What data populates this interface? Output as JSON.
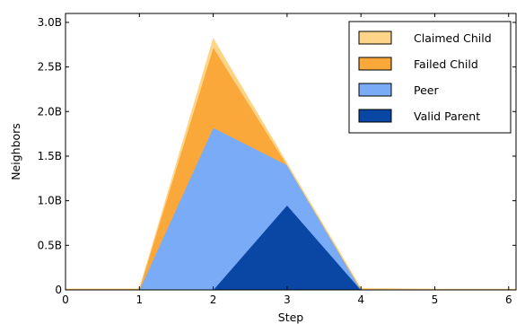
{
  "chart_data": {
    "type": "area",
    "stacked": true,
    "xlabel": "Step",
    "ylabel": "Neighbors",
    "xlim": [
      0,
      6.1
    ],
    "ylim": [
      0,
      3.1
    ],
    "x": [
      0,
      1,
      2,
      3,
      4,
      5,
      6.1
    ],
    "x_ticks": [
      0,
      1,
      2,
      3,
      4,
      5,
      6
    ],
    "x_tick_labels": [
      "0",
      "1",
      "2",
      "3",
      "4",
      "5",
      "6"
    ],
    "y_ticks": [
      0,
      0.5,
      1.0,
      1.5,
      2.0,
      2.5,
      3.0
    ],
    "y_tick_labels": [
      "0",
      "0.5B",
      "1.0B",
      "1.5B",
      "2.0B",
      "2.5B",
      "3.0B"
    ],
    "y_unit": "billions",
    "series": [
      {
        "name": "Valid Parent",
        "color": "#0a46a4",
        "values": [
          0,
          0,
          0,
          0.95,
          0,
          0,
          0
        ]
      },
      {
        "name": "Peer",
        "color": "#7aabf7",
        "values": [
          0,
          0,
          1.82,
          0.45,
          0,
          0,
          0
        ]
      },
      {
        "name": "Failed Child",
        "color": "#fba83a",
        "values": [
          0.01,
          0.01,
          0.9,
          0,
          0.01,
          0,
          0
        ]
      },
      {
        "name": "Claimed Child",
        "color": "#fed588",
        "values": [
          0,
          0,
          0.1,
          0.02,
          0.01,
          0.01,
          0.01
        ]
      }
    ],
    "legend": {
      "position": "top-right",
      "order": [
        "Claimed Child",
        "Failed Child",
        "Peer",
        "Valid Parent"
      ]
    },
    "grid": false
  }
}
